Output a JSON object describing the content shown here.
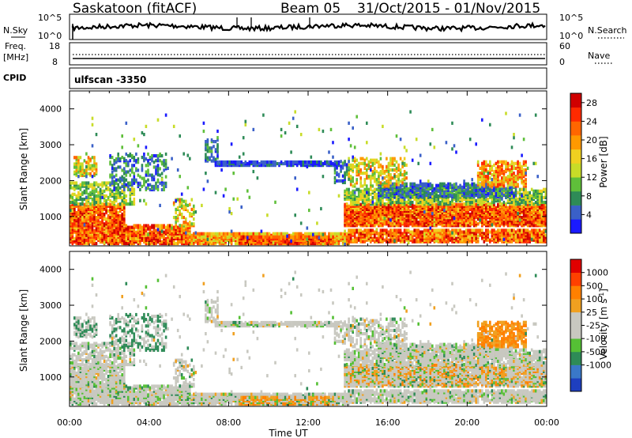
{
  "header": {
    "title": "Saskatoon (fitACF)",
    "beam": "Beam 05",
    "date_range": "31/Oct/2015 - 01/Nov/2015"
  },
  "strip": {
    "nsky_label": "N.Sky",
    "nsky_ticks": [
      "10^5",
      "10^0"
    ],
    "nsearch_label": "N.Search",
    "nsearch_ticks": [
      "10^5",
      "10^0"
    ],
    "freq_label_line1": "Freq.",
    "freq_label_line2": "[MHz]",
    "freq_ticks": [
      "18",
      "8"
    ],
    "nave_label": "Nave",
    "nave_ticks": [
      "60",
      "0"
    ],
    "cpid_label": "CPID",
    "cpid_value": "ulfscan -3350"
  },
  "chart_data": [
    {
      "type": "heatmap",
      "ylabel": "Slant Range [km]",
      "xlabel": "Time UT",
      "x_ticks": [
        "00:00",
        "04:00",
        "08:00",
        "12:00",
        "16:00",
        "20:00",
        "00:00"
      ],
      "y_ticks": [
        1000,
        2000,
        3000,
        4000
      ],
      "ylim": [
        180,
        4500
      ],
      "xlim_hours": [
        0,
        24
      ],
      "colorbar": {
        "label": "Power [dB]",
        "ticks": [
          4,
          8,
          12,
          16,
          20,
          24,
          28
        ],
        "range": [
          0,
          30
        ],
        "colors": [
          "#1a1aff",
          "#3a60c8",
          "#2e8b57",
          "#5fbf3a",
          "#c8dc28",
          "#f0d020",
          "#ff9900",
          "#ff6600",
          "#ff2a00",
          "#d00000"
        ]
      }
    },
    {
      "type": "heatmap",
      "ylabel": "Slant Range [km]",
      "xlabel": "Time UT",
      "x_ticks": [
        "00:00",
        "04:00",
        "08:00",
        "12:00",
        "16:00",
        "20:00",
        "00:00"
      ],
      "y_ticks": [
        1000,
        2000,
        3000,
        4000
      ],
      "ylim": [
        180,
        4500
      ],
      "xlim_hours": [
        0,
        24
      ],
      "colorbar": {
        "label": "Velocity [m s-1]",
        "ticks": [
          "1000",
          "500",
          "100",
          "25",
          "-25",
          "-100",
          "-500",
          "-1000"
        ],
        "colors": [
          "#1e3fbf",
          "#3a78c8",
          "#2e8b57",
          "#55c035",
          "#c8c8c0",
          "#c8c8c0",
          "#f0a020",
          "#ff8000",
          "#ff4000",
          "#e00000"
        ]
      }
    }
  ]
}
